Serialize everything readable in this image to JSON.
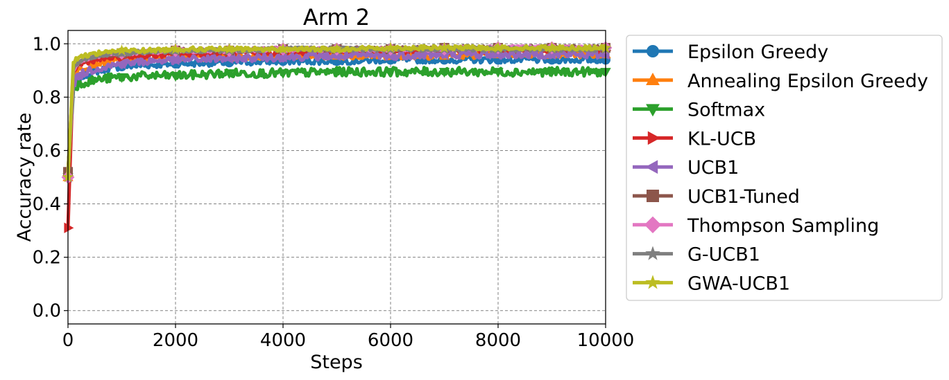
{
  "chart_data": {
    "type": "line",
    "title": "Arm 2",
    "xlabel": "Steps",
    "ylabel": "Accuracy rate",
    "xlim": [
      0,
      10000
    ],
    "ylim": [
      -0.05,
      1.05
    ],
    "xticks": [
      0,
      2000,
      4000,
      6000,
      8000,
      10000
    ],
    "xtick_labels": [
      "0",
      "2000",
      "4000",
      "6000",
      "8000",
      "10000"
    ],
    "yticks": [
      0.0,
      0.2,
      0.4,
      0.6,
      0.8,
      1.0
    ],
    "ytick_labels": [
      "0.0",
      "0.2",
      "0.4",
      "0.6",
      "0.8",
      "1.0"
    ],
    "grid": true,
    "legend_position": "outside-right",
    "series": [
      {
        "name": "Epsilon Greedy",
        "color": "#1f77b4",
        "marker": "circle",
        "x": [
          0,
          100,
          200,
          400,
          700,
          1000,
          1500,
          2000,
          3000,
          4000,
          5000,
          6000,
          7000,
          8000,
          9000,
          10000
        ],
        "y": [
          0.52,
          0.84,
          0.87,
          0.89,
          0.905,
          0.915,
          0.92,
          0.925,
          0.93,
          0.935,
          0.935,
          0.94,
          0.94,
          0.94,
          0.94,
          0.94
        ]
      },
      {
        "name": "Annealing Epsilon Greedy",
        "color": "#ff7f0e",
        "marker": "triangle-up",
        "x": [
          0,
          100,
          200,
          400,
          700,
          1000,
          1500,
          2000,
          3000,
          4000,
          5000,
          6000,
          7000,
          8000,
          9000,
          10000
        ],
        "y": [
          0.5,
          0.88,
          0.9,
          0.92,
          0.935,
          0.94,
          0.945,
          0.95,
          0.95,
          0.955,
          0.955,
          0.955,
          0.955,
          0.96,
          0.96,
          0.96
        ]
      },
      {
        "name": "Softmax",
        "color": "#2ca02c",
        "marker": "triangle-down",
        "x": [
          0,
          100,
          200,
          400,
          700,
          1000,
          1500,
          2000,
          3000,
          4000,
          5000,
          6000,
          7000,
          8000,
          9000,
          10000
        ],
        "y": [
          0.5,
          0.83,
          0.85,
          0.86,
          0.87,
          0.875,
          0.88,
          0.88,
          0.89,
          0.89,
          0.895,
          0.895,
          0.895,
          0.895,
          0.895,
          0.895
        ]
      },
      {
        "name": "KL-UCB",
        "color": "#d62728",
        "marker": "triangle-right",
        "x": [
          0,
          100,
          200,
          400,
          700,
          1000,
          1500,
          2000,
          3000,
          4000,
          5000,
          6000,
          7000,
          8000,
          9000,
          10000
        ],
        "y": [
          0.31,
          0.9,
          0.92,
          0.935,
          0.945,
          0.95,
          0.955,
          0.96,
          0.965,
          0.965,
          0.97,
          0.97,
          0.97,
          0.975,
          0.975,
          0.975
        ]
      },
      {
        "name": "UCB1",
        "color": "#9467bd",
        "marker": "triangle-left",
        "x": [
          0,
          100,
          200,
          400,
          700,
          1000,
          1500,
          2000,
          3000,
          4000,
          5000,
          6000,
          7000,
          8000,
          9000,
          10000
        ],
        "y": [
          0.5,
          0.85,
          0.88,
          0.9,
          0.915,
          0.925,
          0.935,
          0.94,
          0.945,
          0.95,
          0.955,
          0.955,
          0.96,
          0.96,
          0.96,
          0.96
        ]
      },
      {
        "name": "UCB1-Tuned",
        "color": "#8c564b",
        "marker": "square",
        "x": [
          0,
          100,
          200,
          400,
          700,
          1000,
          1500,
          2000,
          3000,
          4000,
          5000,
          6000,
          7000,
          8000,
          9000,
          10000
        ],
        "y": [
          0.52,
          0.9,
          0.93,
          0.95,
          0.96,
          0.965,
          0.97,
          0.975,
          0.975,
          0.98,
          0.98,
          0.98,
          0.985,
          0.985,
          0.985,
          0.985
        ]
      },
      {
        "name": "Thompson Sampling",
        "color": "#e377c2",
        "marker": "diamond",
        "x": [
          0,
          100,
          200,
          400,
          700,
          1000,
          1500,
          2000,
          3000,
          4000,
          5000,
          6000,
          7000,
          8000,
          9000,
          10000
        ],
        "y": [
          0.5,
          0.9,
          0.93,
          0.95,
          0.96,
          0.965,
          0.97,
          0.975,
          0.975,
          0.98,
          0.98,
          0.98,
          0.98,
          0.985,
          0.985,
          0.985
        ]
      },
      {
        "name": "G-UCB1",
        "color": "#7f7f7f",
        "marker": "star",
        "x": [
          0,
          100,
          200,
          400,
          700,
          1000,
          1500,
          2000,
          3000,
          4000,
          5000,
          6000,
          7000,
          8000,
          9000,
          10000
        ],
        "y": [
          0.5,
          0.91,
          0.935,
          0.95,
          0.96,
          0.965,
          0.97,
          0.975,
          0.975,
          0.98,
          0.98,
          0.98,
          0.98,
          0.98,
          0.98,
          0.98
        ]
      },
      {
        "name": "GWA-UCB1",
        "color": "#bcbd22",
        "marker": "star",
        "x": [
          0,
          100,
          200,
          400,
          700,
          1000,
          1500,
          2000,
          3000,
          4000,
          5000,
          6000,
          7000,
          8000,
          9000,
          10000
        ],
        "y": [
          0.5,
          0.93,
          0.95,
          0.96,
          0.97,
          0.975,
          0.975,
          0.98,
          0.98,
          0.98,
          0.98,
          0.985,
          0.985,
          0.985,
          0.985,
          0.985
        ]
      }
    ]
  }
}
